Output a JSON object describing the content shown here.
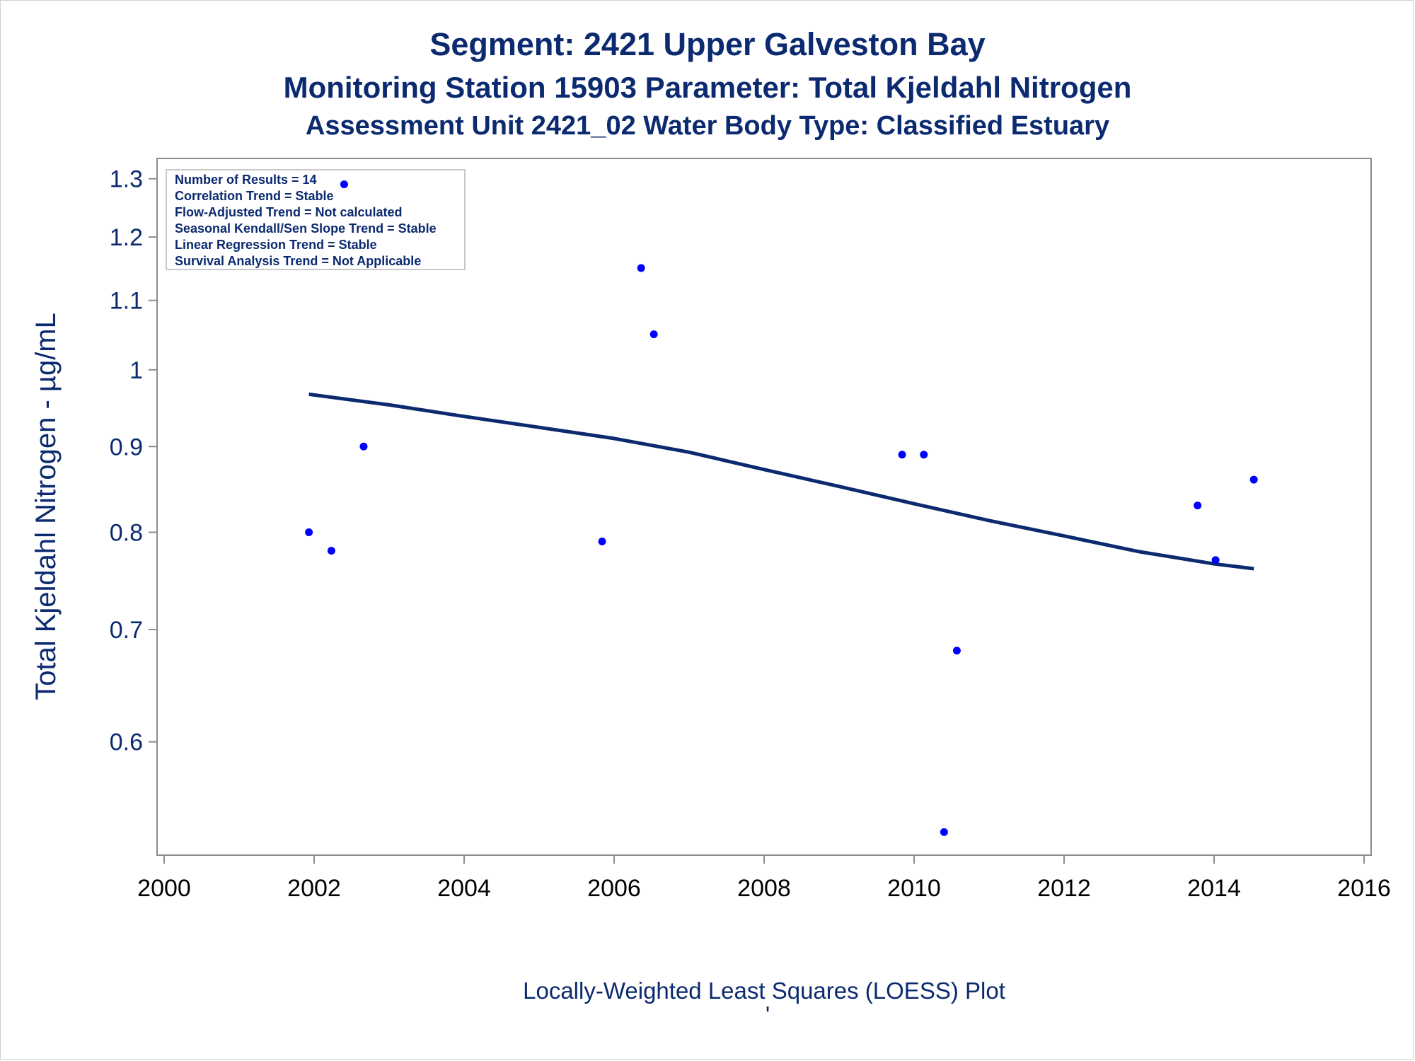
{
  "chart_data": {
    "type": "scatter",
    "title_lines": [
      "Segment: 2421  Upper Galveston Bay",
      "Monitoring Station 15903 Parameter: Total Kjeldahl Nitrogen",
      "Assessment Unit 2421_02   Water Body Type: Classified Estuary"
    ],
    "ylabel": "Total Kjeldahl Nitrogen -  µg/mL",
    "xlabel": "",
    "footnote": "Locally-Weighted Least Squares (LOESS) Plot",
    "footnote_mark": "'",
    "y_scale": "log",
    "xlim": [
      2000,
      2016
    ],
    "ylim": [
      0.52,
      1.32
    ],
    "x_ticks": [
      2000,
      2002,
      2004,
      2006,
      2008,
      2010,
      2012,
      2014,
      2016
    ],
    "y_ticks": [
      0.6,
      0.7,
      0.8,
      0.9,
      1,
      1.1,
      1.2,
      1.3
    ],
    "grid": false,
    "stats_box": {
      "position": "top-left",
      "lines": [
        "Number of Results = 14",
        "Correlation Trend = Stable",
        "Flow-Adjusted Trend = Not calculated",
        "Seasonal Kendall/Sen Slope Trend = Stable",
        "Linear Regression Trend = Stable",
        "Survival Analysis Trend = Not Applicable"
      ]
    },
    "series": [
      {
        "kind": "points",
        "color": "#0000ff",
        "x": [
          2001.93,
          2002.23,
          2002.4,
          2002.66,
          2005.84,
          2006.36,
          2006.53,
          2009.84,
          2010.13,
          2010.4,
          2010.57,
          2013.78,
          2014.02,
          2014.53
        ],
        "y": [
          0.8,
          0.78,
          1.29,
          0.9,
          0.79,
          1.15,
          1.05,
          0.89,
          0.89,
          0.53,
          0.68,
          0.83,
          0.77,
          0.86
        ]
      },
      {
        "kind": "loess-line",
        "color": "#0b2a6f",
        "x": [
          2001.93,
          2003,
          2004,
          2005,
          2006,
          2007,
          2008,
          2009,
          2010,
          2011,
          2012,
          2013,
          2014,
          2014.53
        ],
        "y": [
          0.967,
          0.953,
          0.938,
          0.924,
          0.91,
          0.893,
          0.872,
          0.852,
          0.832,
          0.813,
          0.796,
          0.779,
          0.766,
          0.761
        ]
      }
    ],
    "colors": {
      "title": "#0b2a6f",
      "axis_text_y": "#0b2a6f",
      "axis_text_x": "#000000",
      "axis_line": "#8c8c8c",
      "points": "#0000ff",
      "line": "#0b2a6f"
    }
  }
}
